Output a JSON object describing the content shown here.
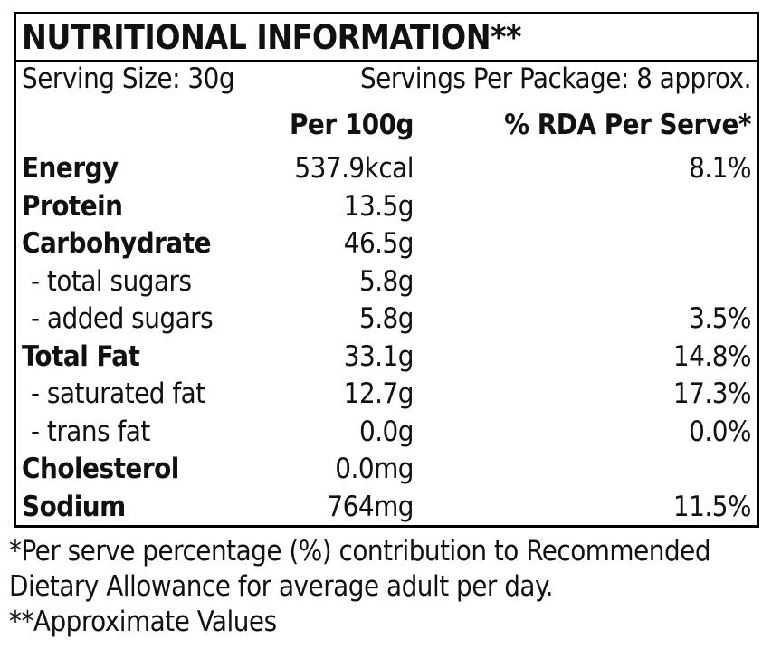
{
  "colors": {
    "text": "#111111",
    "border": "#000000",
    "background": "#ffffff"
  },
  "label": {
    "title": "NUTRITIONAL INFORMATION**",
    "serving_size": "Serving Size: 30g",
    "servings_per_package": "Servings Per Package: 8 approx.",
    "columns": {
      "per_100g": "Per 100g",
      "rda_per_serve": "% RDA Per Serve*"
    },
    "rows": [
      {
        "name": "Energy",
        "value": "537.9kcal",
        "rda": "8.1%"
      },
      {
        "name": "Protein",
        "value": "13.5g",
        "rda": ""
      },
      {
        "name": "Carbohydrate",
        "value": "46.5g",
        "rda": ""
      },
      {
        "name": "- total sugars",
        "value": "5.8g",
        "rda": ""
      },
      {
        "name": "- added sugars",
        "value": "5.8g",
        "rda": "3.5%"
      },
      {
        "name": "Total Fat",
        "value": "33.1g",
        "rda": "14.8%"
      },
      {
        "name": "- saturated fat",
        "value": "12.7g",
        "rda": "17.3%"
      },
      {
        "name": "- trans fat",
        "value": "0.0g",
        "rda": "0.0%"
      },
      {
        "name": "Cholesterol",
        "value": "0.0mg",
        "rda": ""
      },
      {
        "name": "Sodium",
        "value": "764mg",
        "rda": "11.5%"
      }
    ],
    "footnotes": [
      "*Per serve percentage (%) contribution to Recommended",
      "Dietary Allowance for average adult per day.",
      "**Approximate Values"
    ]
  }
}
